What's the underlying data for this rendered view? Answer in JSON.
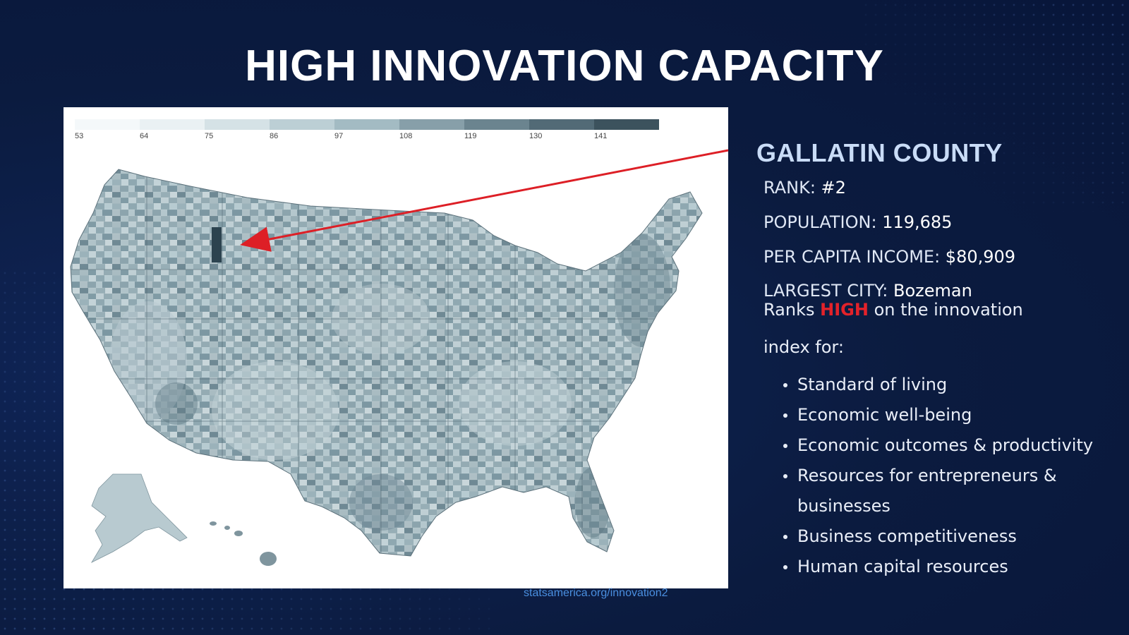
{
  "slide": {
    "title": "HIGH INNOVATION CAPACITY",
    "source": "statsamerica.org/innovation2"
  },
  "map": {
    "legend": {
      "ticks": [
        "53",
        "64",
        "75",
        "86",
        "97",
        "108",
        "119",
        "130",
        "141"
      ],
      "colors": [
        "#f4f8fa",
        "#eaf1f3",
        "#d5e2e6",
        "#bccfd5",
        "#a3bbc3",
        "#879fa9",
        "#6b848f",
        "#526a76",
        "#3c525d"
      ]
    },
    "highlighted_county": "Gallatin County",
    "highlight_color": "#2c434f",
    "arrow_color": "#dd1f26"
  },
  "info": {
    "county": "GALLATIN COUNTY",
    "rank_label": "RANK:",
    "rank_value": "#2",
    "population_label": "POPULATION:",
    "population_value": "119,685",
    "income_label": "PER CAPITA INCOME:",
    "income_value": "$80,909",
    "city_label": "LARGEST CITY:",
    "city_value": "Bozeman",
    "ranks_prefix": "Ranks",
    "ranks_highlight": "HIGH",
    "ranks_suffix": "on the innovation",
    "index_for": "index for:",
    "bullets": [
      "Standard of living",
      "Economic well-being",
      "Economic outcomes & productivity",
      "Resources for entrepreneurs & businesses",
      "Business competitiveness",
      "Human capital resources"
    ]
  }
}
